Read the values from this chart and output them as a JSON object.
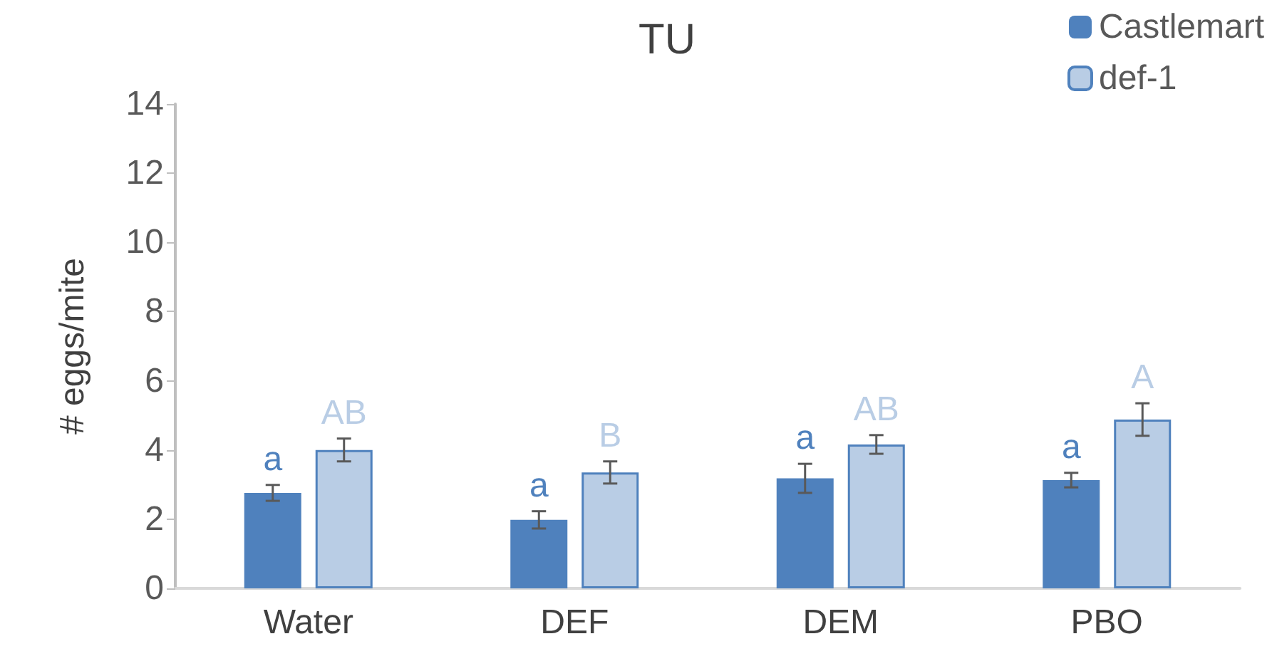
{
  "chart_data": {
    "type": "bar",
    "title": "TU",
    "ylabel": "# eggs/mite",
    "categories": [
      "Water",
      "DEF",
      "DEM",
      "PBO"
    ],
    "series": [
      {
        "name": "Castlemart",
        "color": "#4f81bd",
        "values": [
          2.76,
          1.98,
          3.18,
          3.13
        ],
        "errors": [
          0.23,
          0.25,
          0.42,
          0.21
        ],
        "value_labels": [
          "a",
          "a",
          "a",
          "a"
        ]
      },
      {
        "name": "def-1",
        "color": "#b9cde5",
        "values": [
          4.0,
          3.35,
          4.16,
          4.88
        ],
        "errors": [
          0.33,
          0.32,
          0.27,
          0.47
        ],
        "value_labels": [
          "AB",
          "B",
          "AB",
          "A"
        ]
      }
    ],
    "ylim": [
      0,
      14
    ],
    "yticks": [
      0,
      2,
      4,
      6,
      8,
      10,
      12,
      14
    ],
    "grid": false,
    "legend": "top right"
  }
}
